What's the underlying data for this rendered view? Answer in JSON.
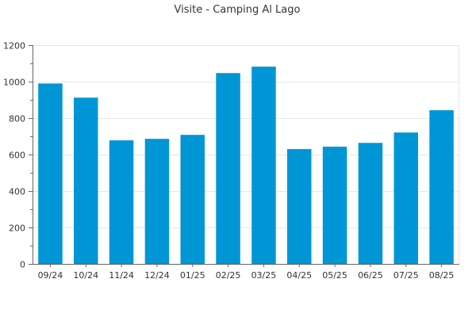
{
  "chart_data": {
    "type": "bar",
    "title": "Visite - Camping Al Lago",
    "xlabel": "",
    "ylabel": "",
    "categories": [
      "09/24",
      "10/24",
      "11/24",
      "12/24",
      "01/25",
      "02/25",
      "03/25",
      "04/25",
      "05/25",
      "06/25",
      "07/25",
      "08/25"
    ],
    "values": [
      990,
      912,
      678,
      686,
      708,
      1047,
      1082,
      630,
      643,
      664,
      721,
      843
    ],
    "ylim": [
      0,
      1200
    ],
    "yticks": [
      0,
      200,
      400,
      600,
      800,
      1000,
      1200
    ],
    "grid": true,
    "bar_color": "#0096d6"
  }
}
